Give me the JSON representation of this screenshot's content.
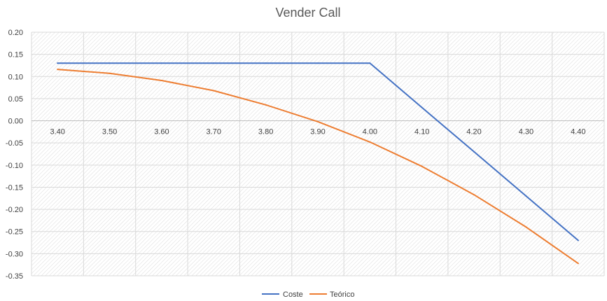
{
  "chart_data": {
    "type": "line",
    "title": "Vender Call",
    "xlabel": "",
    "ylabel": "",
    "x": [
      "3.40",
      "3.50",
      "3.60",
      "3.70",
      "3.80",
      "3.90",
      "4.00",
      "4.10",
      "4.20",
      "4.30",
      "4.40"
    ],
    "ylim": [
      -0.35,
      0.2
    ],
    "yticks": [
      "0.20",
      "0.15",
      "0.10",
      "0.05",
      "0.00",
      "-0.05",
      "-0.10",
      "-0.15",
      "-0.20",
      "-0.25",
      "-0.30",
      "-0.35"
    ],
    "grid": true,
    "legend_position": "bottom",
    "series": [
      {
        "name": "Coste",
        "color": "#4472C4",
        "values": [
          0.13,
          0.13,
          0.13,
          0.13,
          0.13,
          0.13,
          0.13,
          0.03,
          -0.07,
          -0.17,
          -0.27
        ]
      },
      {
        "name": "Teórico",
        "color": "#ED7D31",
        "values": [
          0.116,
          0.107,
          0.091,
          0.068,
          0.036,
          -0.002,
          -0.048,
          -0.103,
          -0.167,
          -0.24,
          -0.322
        ]
      }
    ]
  }
}
